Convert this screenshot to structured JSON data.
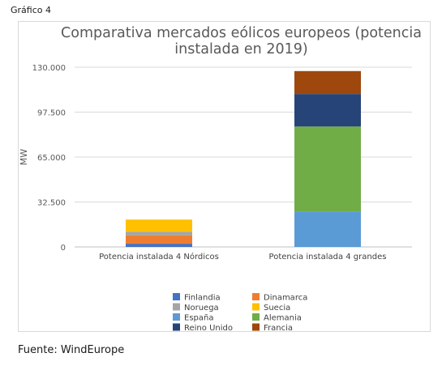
{
  "caption": "Gráfico 4",
  "source": "Fuente: WindEurope",
  "chart_data": {
    "type": "bar",
    "stacked": true,
    "title": "Comparativa mercados eólicos europeos (potencia instalada en 2019)",
    "title_lines": [
      "Comparativa mercados eólicos europeos (potencia",
      "instalada en 2019)"
    ],
    "xlabel": "",
    "ylabel": "MW",
    "ylim": [
      0,
      130000
    ],
    "yticks": [
      0,
      32500,
      65000,
      97500,
      130000
    ],
    "ytick_labels": [
      "0",
      "32.500",
      "65.000",
      "97.500",
      "130.000"
    ],
    "categories": [
      "Potencia instalada 4 Nórdicos",
      "Potencia instalada 4 grandes"
    ],
    "grid": true,
    "legend": "bottom",
    "series": [
      {
        "name": "Finlandia",
        "color": "#4472c4",
        "values": [
          2300,
          0
        ]
      },
      {
        "name": "Dinamarca",
        "color": "#ed7d31",
        "values": [
          6100,
          0
        ]
      },
      {
        "name": "Noruega",
        "color": "#a5a5a5",
        "values": [
          2600,
          0
        ]
      },
      {
        "name": "Suecia",
        "color": "#ffc000",
        "values": [
          8800,
          0
        ]
      },
      {
        "name": "España",
        "color": "#5b9bd5",
        "values": [
          0,
          25700
        ]
      },
      {
        "name": "Alemania",
        "color": "#70ad47",
        "values": [
          0,
          61400
        ]
      },
      {
        "name": "Reino Unido",
        "color": "#264478",
        "values": [
          0,
          23500
        ]
      },
      {
        "name": "Francia",
        "color": "#9e480e",
        "values": [
          0,
          16600
        ]
      }
    ]
  }
}
